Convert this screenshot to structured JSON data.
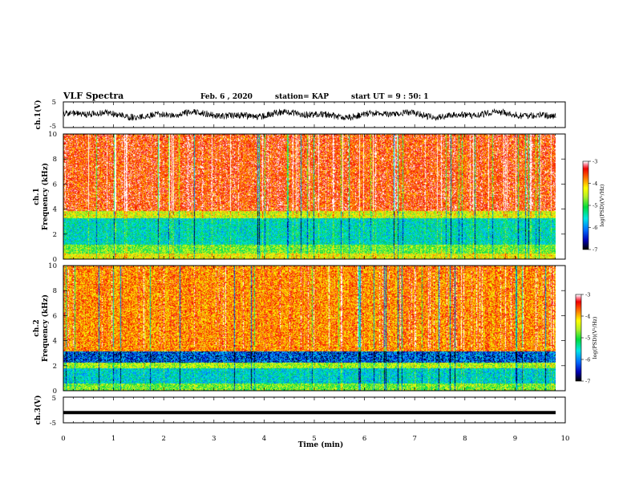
{
  "header": {
    "title": "VLF Spectra",
    "date": "Feb. 6 , 2020",
    "station": "station= KAP",
    "start": "start UT = 9 : 50: 1"
  },
  "chart_data": [
    {
      "id": "ch1-waveform",
      "type": "line",
      "ylabel": "ch.1(V)",
      "yticks": [
        "5",
        "-5"
      ],
      "ylim": [
        -5,
        5
      ],
      "xlim": [
        0,
        10
      ],
      "color": "#000000",
      "description_of_trace": "noisy waveform, amplitude about +/-2 V"
    },
    {
      "id": "ch1-spectrogram",
      "type": "heatmap",
      "ylabel": "ch.1",
      "ylabel2": "Frequency (kHz)",
      "yticks": [
        "0",
        "2",
        "4",
        "6",
        "8",
        "10"
      ],
      "ylim": [
        0,
        10
      ],
      "xlim": [
        0,
        9.8
      ],
      "colorbar": {
        "label": "log(PSD)(V²/Hz)",
        "ticks": [
          "-3",
          "-4",
          "-5",
          "-6",
          "-7"
        ],
        "range": [
          -7,
          -3
        ]
      },
      "bands_kHz": [
        {
          "from": 0.0,
          "to": 0.5,
          "level": -4.3
        },
        {
          "from": 0.5,
          "to": 1.2,
          "level": -4.8
        },
        {
          "from": 1.2,
          "to": 3.3,
          "level": -5.5
        },
        {
          "from": 3.3,
          "to": 3.9,
          "level": -4.4
        },
        {
          "from": 3.9,
          "to": 10.0,
          "level": -3.5
        }
      ]
    },
    {
      "id": "ch2-spectrogram",
      "type": "heatmap",
      "ylabel": "ch.2",
      "ylabel2": "Frequency (kHz)",
      "yticks": [
        "0",
        "2",
        "4",
        "6",
        "8",
        "10"
      ],
      "ylim": [
        0,
        10
      ],
      "xlim": [
        0,
        9.8
      ],
      "colorbar": {
        "label": "log(PSD)(V²/Hz)",
        "ticks": [
          "-3",
          "-4",
          "-5",
          "-6",
          "-7"
        ],
        "range": [
          -7,
          -3
        ]
      },
      "bands_kHz": [
        {
          "from": 0.0,
          "to": 0.6,
          "level": -4.8
        },
        {
          "from": 0.6,
          "to": 1.8,
          "level": -5.6
        },
        {
          "from": 1.8,
          "to": 2.3,
          "level": -4.6
        },
        {
          "from": 2.3,
          "to": 3.2,
          "level": -6.1
        },
        {
          "from": 3.2,
          "to": 10.0,
          "level": -3.8
        }
      ]
    },
    {
      "id": "ch3-waveform",
      "type": "line",
      "ylabel": "ch.3(V)",
      "yticks": [
        "5",
        "-5"
      ],
      "ylim": [
        -5,
        5
      ],
      "xlim": [
        0,
        10
      ],
      "value": -1,
      "color": "#000000"
    }
  ],
  "xaxis": {
    "label": "Time (min)",
    "ticks": [
      "0",
      "1",
      "2",
      "3",
      "4",
      "5",
      "6",
      "7",
      "8",
      "9",
      "10"
    ],
    "range": [
      0,
      10
    ]
  }
}
